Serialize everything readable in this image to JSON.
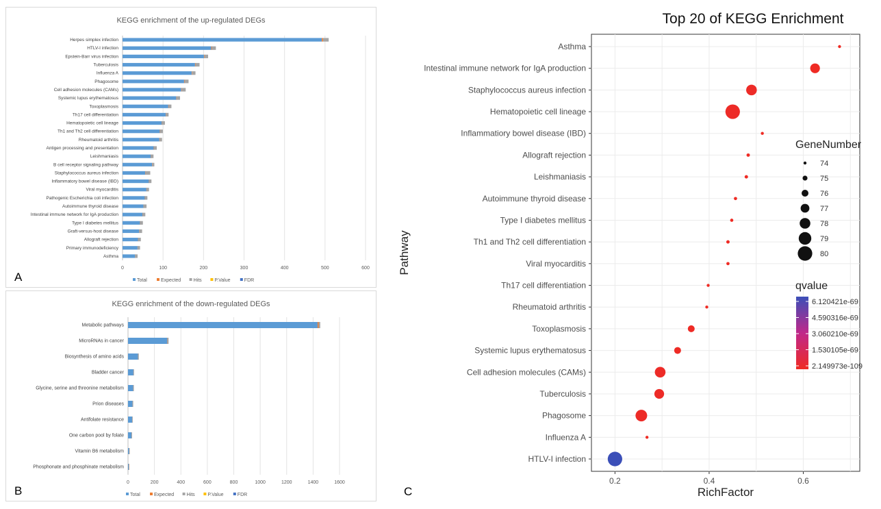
{
  "panels": {
    "a_label": "A",
    "b_label": "B",
    "c_label": "C"
  },
  "chart_data": [
    {
      "id": "A",
      "type": "bar",
      "orientation": "horizontal",
      "stacked": true,
      "title": "KEGG enrichment of the up-regulated DEGs",
      "xlim": [
        0,
        600
      ],
      "xticks": [
        "0",
        "100",
        "200",
        "300",
        "400",
        "500",
        "600"
      ],
      "grid": true,
      "legend_position": "bottom",
      "colors": {
        "Total": "#5b9bd5",
        "Expected": "#ed7d31",
        "Hits": "#a5a5a5",
        "P.Value": "#ffc000",
        "FDR": "#4472c4"
      },
      "categories": [
        "Herpes simplex infection",
        "HTLV-I infection",
        "Epstein-Barr virus infection",
        "Tuberculosis",
        "Influenza A",
        "Phagosome",
        "Cell adhesion molecules (CAMs)",
        "Systemic lupus erythematosus",
        "Toxoplasmosis",
        "Th17 cell differentiation",
        "Hematopoietic cell lineage",
        "Th1 and Th2 cell differentiation",
        "Rheumatoid arthritis",
        "Antigen processing and presentation",
        "Leishmaniasis",
        "B cell receptor signaling pathway",
        "Staphylococcus aureus infection",
        "Inflammatory bowel disease (IBD)",
        "Viral myocarditis",
        "Pathogenic Escherichia coli infection",
        "Autoimmune thyroid disease",
        "Intestinal immune network for IgA production",
        "Type I diabetes mellitus",
        "Graft-versus-host disease",
        "Allograft rejection",
        "Primary immunodeficiency",
        "Asthma"
      ],
      "series": [
        {
          "name": "Total",
          "values": [
            492,
            219,
            201,
            179,
            171,
            152,
            145,
            133,
            113,
            107,
            97,
            92,
            91,
            77,
            70,
            73,
            56,
            65,
            59,
            55,
            52,
            49,
            43,
            41,
            38,
            37,
            31
          ]
        },
        {
          "name": "Expected",
          "values": [
            3,
            1.5,
            1.3,
            1.2,
            1.1,
            1,
            1,
            0.9,
            0.7,
            0.7,
            0.6,
            0.6,
            0.6,
            0.5,
            0.5,
            0.5,
            0.4,
            0.4,
            0.4,
            0.4,
            0.3,
            0.3,
            0.3,
            0.3,
            0.2,
            0.2,
            0.2
          ]
        },
        {
          "name": "Hits",
          "values": [
            14,
            10,
            9,
            10,
            8,
            10,
            10,
            8,
            7,
            6,
            7,
            7,
            6,
            7,
            6,
            5,
            12,
            6,
            6,
            6,
            7,
            7,
            7,
            7,
            7,
            6,
            6
          ]
        },
        {
          "name": "P.Value",
          "values": [
            0,
            0,
            0,
            0,
            0,
            0,
            0,
            0,
            0,
            0,
            0,
            0,
            0,
            0,
            0,
            0,
            0,
            0,
            0,
            0,
            0,
            0,
            0,
            0,
            0,
            0,
            0
          ]
        },
        {
          "name": "FDR",
          "values": [
            0,
            0,
            0,
            0,
            0,
            0,
            0,
            0,
            0,
            0,
            0,
            0,
            0,
            0,
            0,
            0,
            0,
            0,
            0,
            0,
            0,
            0,
            0,
            0,
            0,
            0,
            0
          ]
        }
      ]
    },
    {
      "id": "B",
      "type": "bar",
      "orientation": "horizontal",
      "stacked": true,
      "title": "KEGG enrichment of the down-regulated DEGs",
      "xlim": [
        0,
        1600
      ],
      "xticks": [
        "0",
        "200",
        "400",
        "600",
        "800",
        "1000",
        "1200",
        "1400",
        "1600"
      ],
      "grid": true,
      "legend_position": "bottom",
      "colors": {
        "Total": "#5b9bd5",
        "Expected": "#ed7d31",
        "Hits": "#a5a5a5",
        "P.Value": "#ffc000",
        "FDR": "#4472c4"
      },
      "categories": [
        "Metabolic pathways",
        "MicroRNAs in cancer",
        "Biosynthesis of amino acids",
        "Bladder cancer",
        "Glycine, serine and threonine metabolism",
        "Prion diseases",
        "Antifolate resistance",
        "One carbon pool by folate",
        "Vitamin B6 metabolism",
        "Phosphonate and phosphinate metabolism"
      ],
      "series": [
        {
          "name": "Total",
          "values": [
            1434,
            297,
            75,
            41,
            40,
            35,
            31,
            26,
            9,
            6
          ]
        },
        {
          "name": "Expected",
          "values": [
            8,
            1.8,
            0.5,
            0.3,
            0.3,
            0.2,
            0.2,
            0.2,
            0.1,
            0.1
          ]
        },
        {
          "name": "Hits",
          "values": [
            12,
            8,
            6,
            4,
            4,
            4,
            4,
            4,
            2,
            2
          ]
        },
        {
          "name": "P.Value",
          "values": [
            0,
            0,
            0,
            0,
            0,
            0,
            0,
            0,
            0,
            0
          ]
        },
        {
          "name": "FDR",
          "values": [
            0,
            0,
            0,
            0,
            0,
            0,
            0,
            0,
            0,
            0
          ]
        }
      ]
    },
    {
      "id": "C",
      "type": "scatter",
      "title": "Top 20 of KEGG Enrichment",
      "xlabel": "RichFactor",
      "ylabel": "Pathway",
      "xlim": [
        0.15,
        0.72
      ],
      "xticks": [
        0.2,
        0.4,
        0.6
      ],
      "grid": true,
      "legend_position": "right",
      "size_legend": {
        "title": "GeneNumber",
        "levels": [
          74,
          75,
          76,
          77,
          78,
          79,
          80
        ]
      },
      "color_legend": {
        "title": "qvalue",
        "labels": [
          "6.120421e-69",
          "4.590316e-69",
          "3.060210e-69",
          "1.530105e-69",
          "2.149973e-109"
        ],
        "high_color": "#3b4fb8",
        "low_color": "#ef2b24"
      },
      "points": [
        {
          "pathway": "Asthma",
          "rich_factor": 0.677,
          "gene_number": 74,
          "qvalue_fraction": 0.0
        },
        {
          "pathway": "Intestinal immune network for IgA production",
          "rich_factor": 0.625,
          "gene_number": 77.5,
          "qvalue_fraction": 0.0
        },
        {
          "pathway": "Staphylococcus aureus infection",
          "rich_factor": 0.49,
          "gene_number": 78,
          "qvalue_fraction": 0.02
        },
        {
          "pathway": "Hematopoietic cell lineage",
          "rich_factor": 0.45,
          "gene_number": 80,
          "qvalue_fraction": 0.02
        },
        {
          "pathway": "Inflammatiory bowel disease (IBD)",
          "rich_factor": 0.513,
          "gene_number": 74,
          "qvalue_fraction": 0.0
        },
        {
          "pathway": "Allograft rejection",
          "rich_factor": 0.483,
          "gene_number": 74.2,
          "qvalue_fraction": 0.0
        },
        {
          "pathway": "Leishmaniasis",
          "rich_factor": 0.479,
          "gene_number": 74.2,
          "qvalue_fraction": 0.0
        },
        {
          "pathway": "Autoimmune thyroid disease",
          "rich_factor": 0.456,
          "gene_number": 74.1,
          "qvalue_fraction": 0.0
        },
        {
          "pathway": "Type I diabetes mellitus",
          "rich_factor": 0.448,
          "gene_number": 74.1,
          "qvalue_fraction": 0.0
        },
        {
          "pathway": "Th1 and Th2 cell differentiation",
          "rich_factor": 0.44,
          "gene_number": 74.2,
          "qvalue_fraction": 0.0
        },
        {
          "pathway": "Viral myocarditis",
          "rich_factor": 0.44,
          "gene_number": 74.1,
          "qvalue_fraction": 0.0
        },
        {
          "pathway": "Th17 cell differentiation",
          "rich_factor": 0.398,
          "gene_number": 74,
          "qvalue_fraction": 0.0
        },
        {
          "pathway": "Rheumatoid arthritis",
          "rich_factor": 0.395,
          "gene_number": 74,
          "qvalue_fraction": 0.0
        },
        {
          "pathway": "Toxoplasmosis",
          "rich_factor": 0.362,
          "gene_number": 76,
          "qvalue_fraction": 0.01
        },
        {
          "pathway": "Systemic lupus erythematosus",
          "rich_factor": 0.333,
          "gene_number": 76,
          "qvalue_fraction": 0.01
        },
        {
          "pathway": "Cell adhesion molecules (CAMs)",
          "rich_factor": 0.296,
          "gene_number": 78,
          "qvalue_fraction": 0.02
        },
        {
          "pathway": "Tuberculosis",
          "rich_factor": 0.294,
          "gene_number": 77.5,
          "qvalue_fraction": 0.02
        },
        {
          "pathway": "Phagosome",
          "rich_factor": 0.256,
          "gene_number": 78.5,
          "qvalue_fraction": 0.02
        },
        {
          "pathway": "Influenza A",
          "rich_factor": 0.268,
          "gene_number": 74,
          "qvalue_fraction": 0.0
        },
        {
          "pathway": "HTLV-I infection",
          "rich_factor": 0.2,
          "gene_number": 80,
          "qvalue_fraction": 1.0
        }
      ]
    }
  ]
}
